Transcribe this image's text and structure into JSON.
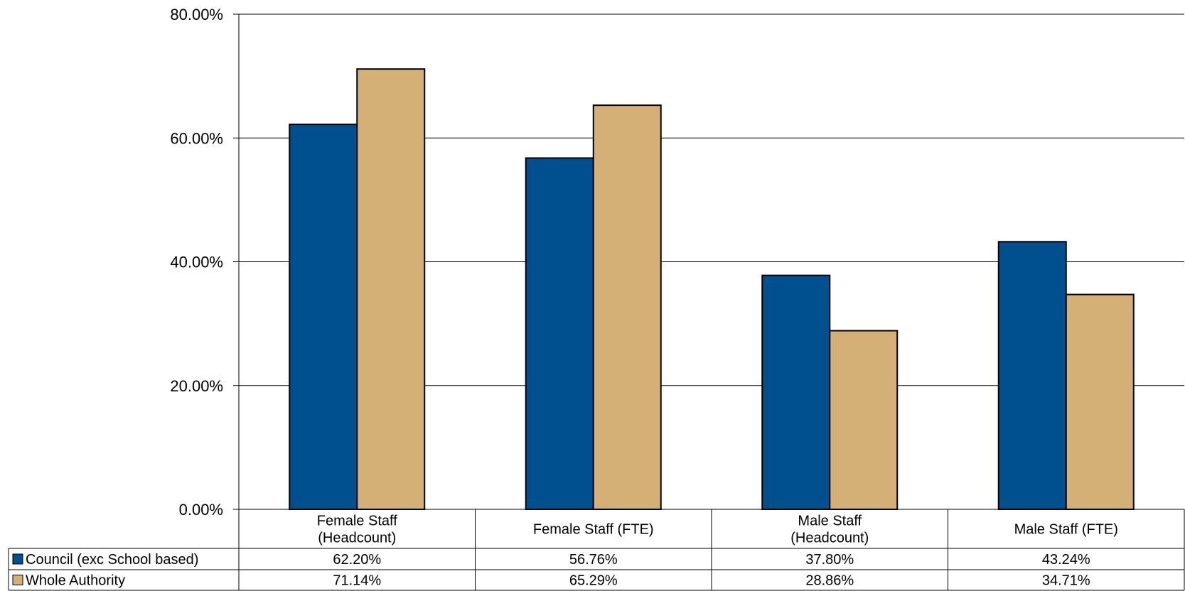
{
  "chart_data": {
    "type": "bar",
    "title": "",
    "xlabel": "",
    "ylabel": "",
    "ylim": [
      0,
      80
    ],
    "y_ticks": [
      "0.00%",
      "20.00%",
      "40.00%",
      "60.00%",
      "80.00%"
    ],
    "y_tick_values": [
      0,
      20,
      40,
      60,
      80
    ],
    "grid": true,
    "legend_placement": "data-table",
    "categories": [
      [
        "Female Staff",
        "(Headcount)"
      ],
      [
        "Female Staff (FTE)"
      ],
      [
        "Male Staff",
        "(Headcount)"
      ],
      [
        "Male Staff (FTE)"
      ]
    ],
    "series": [
      {
        "name": "Council (exc School based)",
        "color": "#004F8F",
        "values": [
          62.2,
          56.76,
          37.8,
          43.24
        ],
        "labels": [
          "62.20%",
          "56.76%",
          "37.80%",
          "43.24%"
        ]
      },
      {
        "name": "Whole Authority",
        "color": "#D4B077",
        "values": [
          71.14,
          65.29,
          28.86,
          34.71
        ],
        "labels": [
          "71.14%",
          "65.29%",
          "28.86%",
          "34.71%"
        ]
      }
    ]
  }
}
